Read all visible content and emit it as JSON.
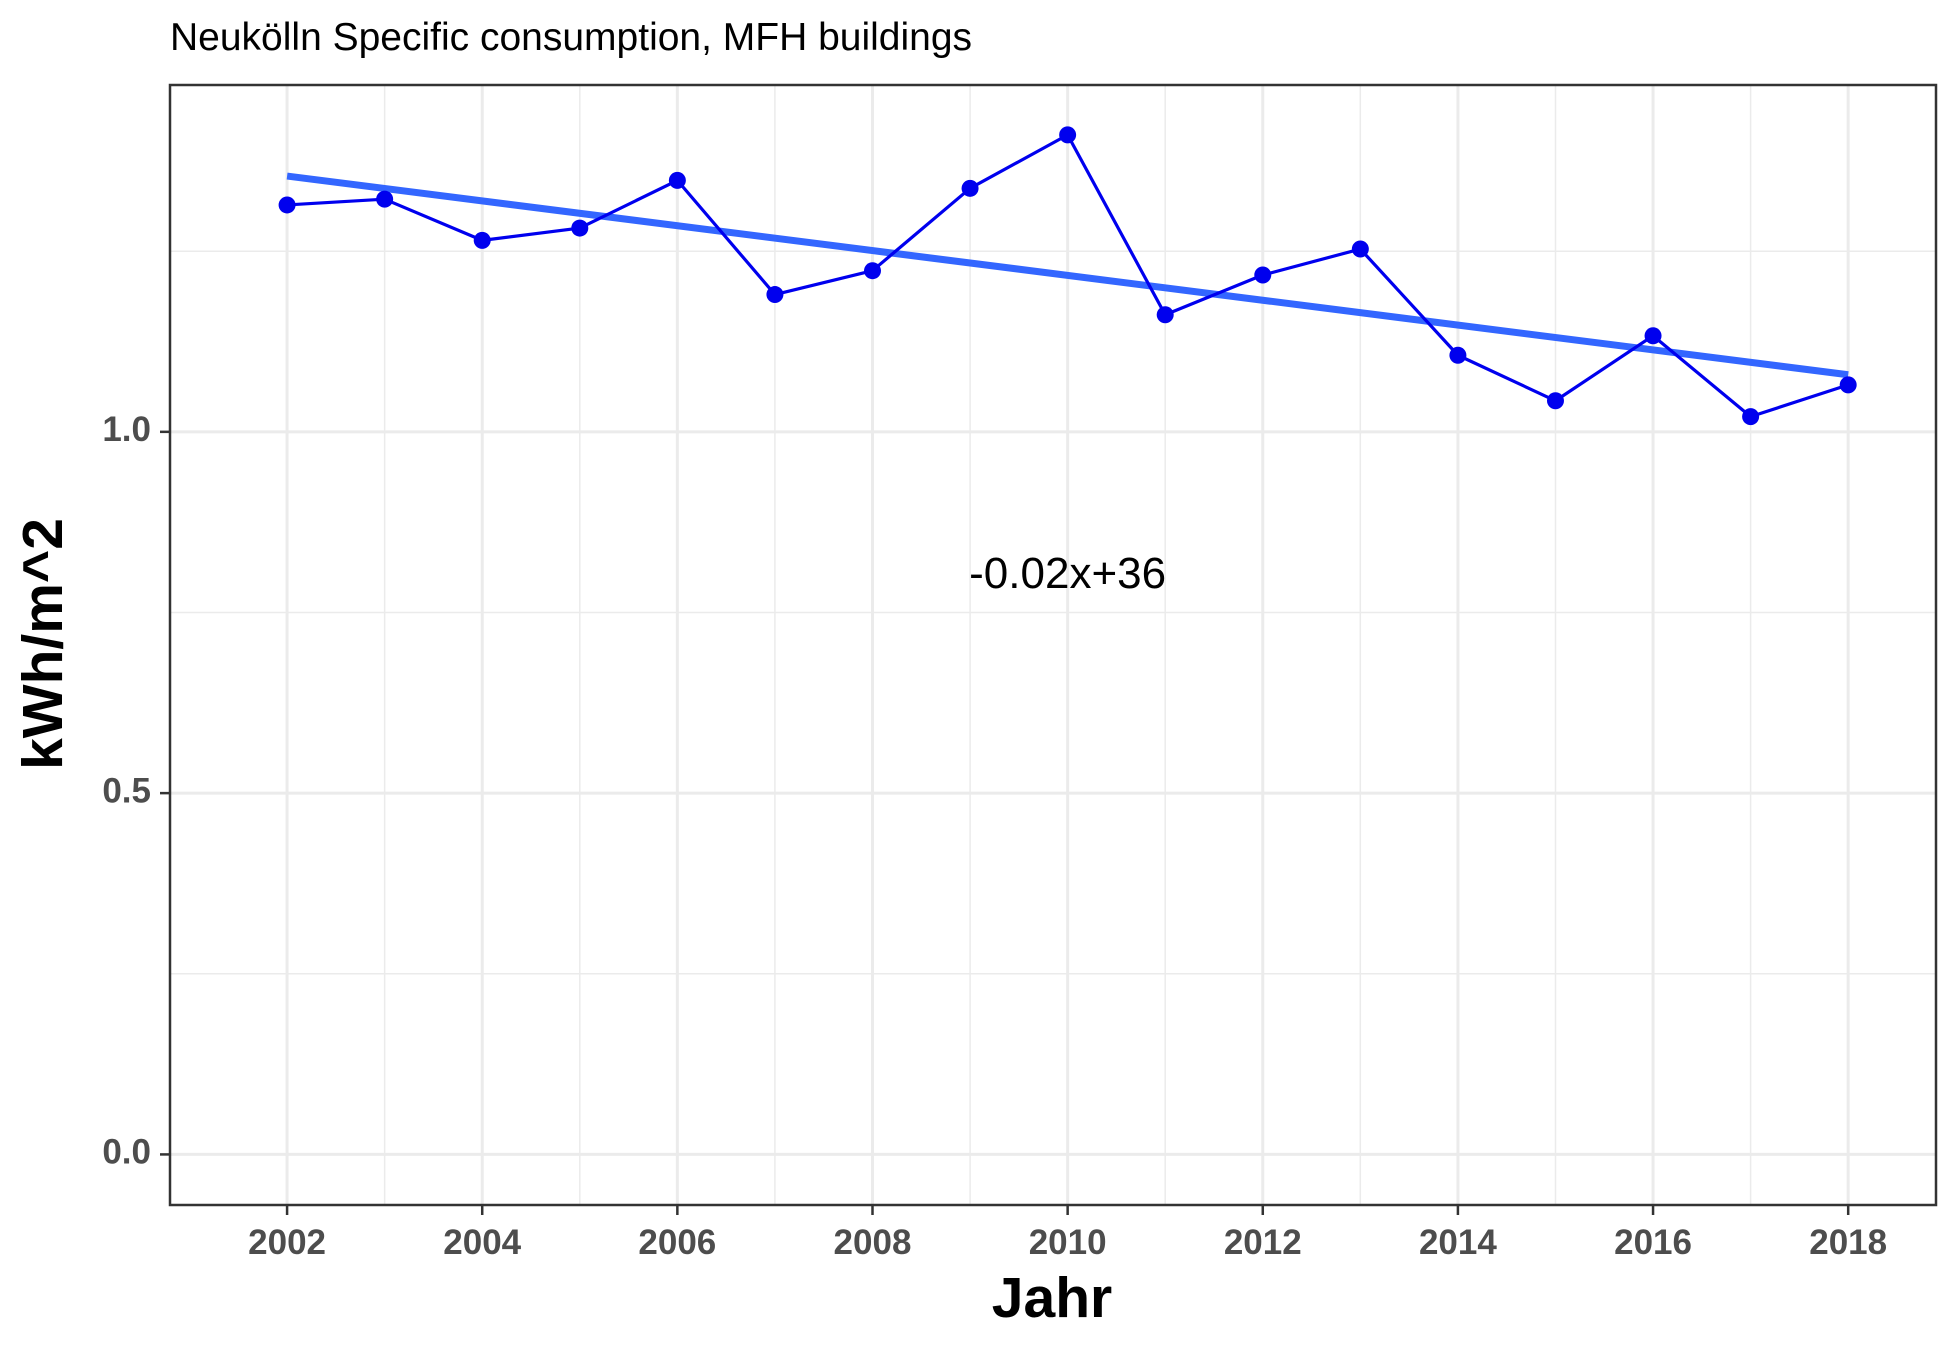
{
  "chart_data": {
    "type": "line",
    "title": "Neukölln Specific consumption, MFH buildings",
    "xlabel": "Jahr",
    "ylabel": "kWh/m^2",
    "x": [
      2002,
      2003,
      2004,
      2005,
      2006,
      2007,
      2008,
      2009,
      2010,
      2011,
      2012,
      2013,
      2014,
      2015,
      2016,
      2017,
      2018
    ],
    "series": [
      {
        "values": [
          1.314,
          1.322,
          1.265,
          1.282,
          1.348,
          1.19,
          1.223,
          1.337,
          1.411,
          1.162,
          1.217,
          1.253,
          1.106,
          1.043,
          1.133,
          1.021,
          1.065
        ],
        "color": "#0000ee"
      }
    ],
    "trend_line": {
      "x": [
        2002,
        2018
      ],
      "y": [
        1.354,
        1.079
      ],
      "color": "#3366ff"
    },
    "annotations": [
      {
        "text": "-0.02x+36",
        "x": 2010,
        "y": 0.8
      }
    ],
    "xlim": [
      2000.8,
      2018.9
    ],
    "ylim": [
      -0.07,
      1.48
    ],
    "x_ticks": [
      2002,
      2004,
      2006,
      2008,
      2010,
      2012,
      2014,
      2016,
      2018
    ],
    "x_ticks_labels": [
      "2002",
      "2004",
      "2006",
      "2008",
      "2010",
      "2012",
      "2014",
      "2016",
      "2018"
    ],
    "y_ticks": [
      0.0,
      0.5,
      1.0
    ],
    "y_ticks_labels": [
      "0.0",
      "0.5",
      "1.0"
    ],
    "grid": true,
    "colors": {
      "panel_border": "#333333",
      "grid": "#ebebeb",
      "tick_text": "#4d4d4d"
    }
  }
}
